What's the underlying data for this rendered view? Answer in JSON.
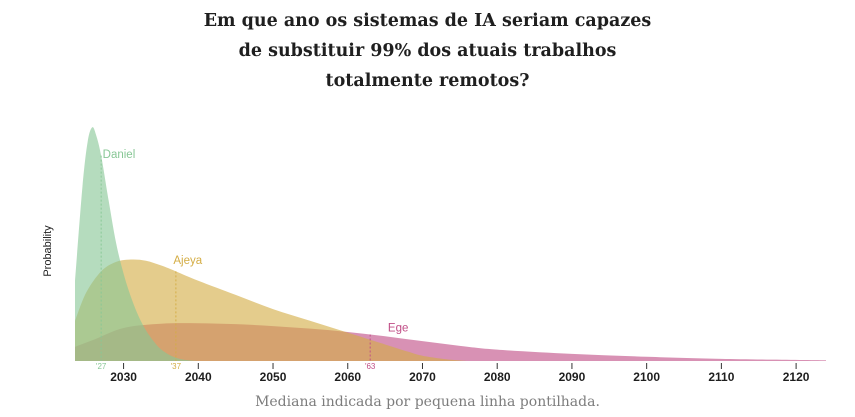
{
  "title_lines": [
    "Em que ano os sistemas de IA seriam capazes",
    "de substituir 99% dos atuais trabalhos",
    "totalmente remotos?"
  ],
  "caption": "Mediana indicada por pequena linha pontilhada.",
  "chart_data": {
    "type": "area",
    "ylabel": "Probability",
    "xlim": [
      2023.5,
      2124
    ],
    "ticks": [
      {
        "value": 2030,
        "label": "2030"
      },
      {
        "value": 2040,
        "label": "2040"
      },
      {
        "value": 2050,
        "label": "2050"
      },
      {
        "value": 2060,
        "label": "2060"
      },
      {
        "value": 2070,
        "label": "2070"
      },
      {
        "value": 2080,
        "label": "2080"
      },
      {
        "value": 2090,
        "label": "2090"
      },
      {
        "value": 2100,
        "label": "2100"
      },
      {
        "value": 2110,
        "label": "2110"
      },
      {
        "value": 2120,
        "label": "2120"
      }
    ],
    "ylim": [
      0,
      1
    ],
    "series": [
      {
        "name": "Ege",
        "color": "#c04d86",
        "median": 2063,
        "median_label": "'63",
        "x": [
          2023.5,
          2026,
          2030,
          2035,
          2040,
          2045,
          2050,
          2055,
          2060,
          2065,
          2070,
          2075,
          2080,
          2090,
          2100,
          2110,
          2124
        ],
        "y": [
          0.06,
          0.09,
          0.14,
          0.158,
          0.16,
          0.156,
          0.148,
          0.137,
          0.123,
          0.105,
          0.084,
          0.064,
          0.048,
          0.03,
          0.018,
          0.009,
          0.003
        ]
      },
      {
        "name": "Ajeya",
        "color": "#d4ad45",
        "median": 2037,
        "median_label": "'37",
        "x": [
          2023.5,
          2025,
          2027,
          2029,
          2031,
          2033,
          2035,
          2037,
          2040,
          2045,
          2050,
          2055,
          2060,
          2065,
          2068,
          2070,
          2073,
          2076
        ],
        "y": [
          0.17,
          0.29,
          0.38,
          0.42,
          0.43,
          0.425,
          0.405,
          0.38,
          0.34,
          0.28,
          0.22,
          0.17,
          0.12,
          0.07,
          0.04,
          0.022,
          0.008,
          0.0
        ]
      },
      {
        "name": "Daniel",
        "color": "#88c796",
        "median": 2027,
        "median_label": "'27",
        "x": [
          2023.5,
          2024.5,
          2025.2,
          2025.8,
          2026.3,
          2027,
          2028,
          2029,
          2030,
          2031,
          2032,
          2033,
          2034,
          2035,
          2036.5,
          2038,
          2040
        ],
        "y": [
          0.34,
          0.74,
          0.93,
          0.99,
          0.96,
          0.87,
          0.68,
          0.5,
          0.37,
          0.27,
          0.19,
          0.13,
          0.085,
          0.05,
          0.02,
          0.006,
          0.0
        ]
      }
    ]
  }
}
